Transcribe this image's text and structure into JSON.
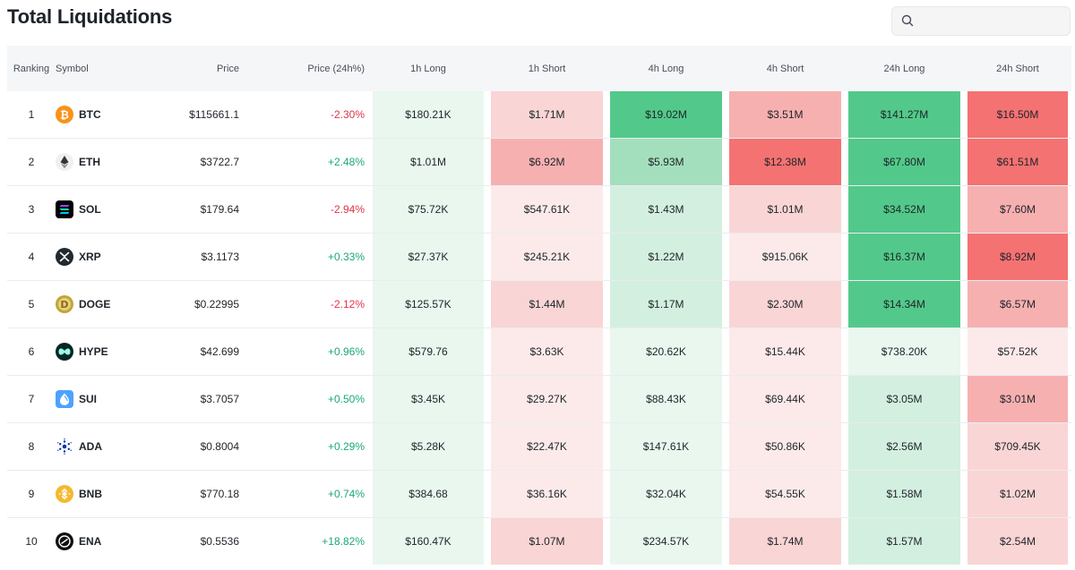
{
  "header": {
    "title": "Total Liquidations",
    "search_value": ""
  },
  "columns": {
    "ranking": "Ranking",
    "symbol": "Symbol",
    "price": "Price",
    "price_change": "Price (24h%)",
    "long_1h": "1h Long",
    "short_1h": "1h Short",
    "long_4h": "4h Long",
    "short_4h": "4h Short",
    "long_24h": "24h Long",
    "short_24h": "24h Short"
  },
  "colors": {
    "long_scale": [
      "#e9f7ef",
      "#d3efe0",
      "#a3dfbd",
      "#52c98a"
    ],
    "short_scale": [
      "#fceaea",
      "#f9d5d5",
      "#f7b0b0",
      "#f57272"
    ],
    "positive_change": "#1aa879",
    "negative_change": "#e0334a"
  },
  "rows": [
    {
      "rank": "1",
      "symbol": "BTC",
      "icon": "btc-icon",
      "price": "$115661.1",
      "change": "-2.30%",
      "change_dir": "neg",
      "l1h": "$180.21K",
      "s1h": "$1.71M",
      "l4h": "$19.02M",
      "s4h": "$3.51M",
      "l24h": "$141.27M",
      "s24h": "$16.50M",
      "shade": {
        "l1h": 0,
        "s1h": 1,
        "l4h": 3,
        "s4h": 2,
        "l24h": 3,
        "s24h": 3
      }
    },
    {
      "rank": "2",
      "symbol": "ETH",
      "icon": "eth-icon",
      "price": "$3722.7",
      "change": "+2.48%",
      "change_dir": "pos",
      "l1h": "$1.01M",
      "s1h": "$6.92M",
      "l4h": "$5.93M",
      "s4h": "$12.38M",
      "l24h": "$67.80M",
      "s24h": "$61.51M",
      "shade": {
        "l1h": 0,
        "s1h": 2,
        "l4h": 2,
        "s4h": 3,
        "l24h": 3,
        "s24h": 3
      }
    },
    {
      "rank": "3",
      "symbol": "SOL",
      "icon": "sol-icon",
      "price": "$179.64",
      "change": "-2.94%",
      "change_dir": "neg",
      "l1h": "$75.72K",
      "s1h": "$547.61K",
      "l4h": "$1.43M",
      "s4h": "$1.01M",
      "l24h": "$34.52M",
      "s24h": "$7.60M",
      "shade": {
        "l1h": 0,
        "s1h": 0,
        "l4h": 1,
        "s4h": 1,
        "l24h": 3,
        "s24h": 2
      }
    },
    {
      "rank": "4",
      "symbol": "XRP",
      "icon": "xrp-icon",
      "price": "$3.1173",
      "change": "+0.33%",
      "change_dir": "pos",
      "l1h": "$27.37K",
      "s1h": "$245.21K",
      "l4h": "$1.22M",
      "s4h": "$915.06K",
      "l24h": "$16.37M",
      "s24h": "$8.92M",
      "shade": {
        "l1h": 0,
        "s1h": 0,
        "l4h": 1,
        "s4h": 0,
        "l24h": 3,
        "s24h": 3
      }
    },
    {
      "rank": "5",
      "symbol": "DOGE",
      "icon": "doge-icon",
      "price": "$0.22995",
      "change": "-2.12%",
      "change_dir": "neg",
      "l1h": "$125.57K",
      "s1h": "$1.44M",
      "l4h": "$1.17M",
      "s4h": "$2.30M",
      "l24h": "$14.34M",
      "s24h": "$6.57M",
      "shade": {
        "l1h": 0,
        "s1h": 1,
        "l4h": 1,
        "s4h": 1,
        "l24h": 3,
        "s24h": 2
      }
    },
    {
      "rank": "6",
      "symbol": "HYPE",
      "icon": "hype-icon",
      "price": "$42.699",
      "change": "+0.96%",
      "change_dir": "pos",
      "l1h": "$579.76",
      "s1h": "$3.63K",
      "l4h": "$20.62K",
      "s4h": "$15.44K",
      "l24h": "$738.20K",
      "s24h": "$57.52K",
      "shade": {
        "l1h": 0,
        "s1h": 0,
        "l4h": 0,
        "s4h": 0,
        "l24h": 0,
        "s24h": 0
      }
    },
    {
      "rank": "7",
      "symbol": "SUI",
      "icon": "sui-icon",
      "price": "$3.7057",
      "change": "+0.50%",
      "change_dir": "pos",
      "l1h": "$3.45K",
      "s1h": "$29.27K",
      "l4h": "$88.43K",
      "s4h": "$69.44K",
      "l24h": "$3.05M",
      "s24h": "$3.01M",
      "shade": {
        "l1h": 0,
        "s1h": 0,
        "l4h": 0,
        "s4h": 0,
        "l24h": 1,
        "s24h": 2
      }
    },
    {
      "rank": "8",
      "symbol": "ADA",
      "icon": "ada-icon",
      "price": "$0.8004",
      "change": "+0.29%",
      "change_dir": "pos",
      "l1h": "$5.28K",
      "s1h": "$22.47K",
      "l4h": "$147.61K",
      "s4h": "$50.86K",
      "l24h": "$2.56M",
      "s24h": "$709.45K",
      "shade": {
        "l1h": 0,
        "s1h": 0,
        "l4h": 0,
        "s4h": 0,
        "l24h": 1,
        "s24h": 1
      }
    },
    {
      "rank": "9",
      "symbol": "BNB",
      "icon": "bnb-icon",
      "price": "$770.18",
      "change": "+0.74%",
      "change_dir": "pos",
      "l1h": "$384.68",
      "s1h": "$36.16K",
      "l4h": "$32.04K",
      "s4h": "$54.55K",
      "l24h": "$1.58M",
      "s24h": "$1.02M",
      "shade": {
        "l1h": 0,
        "s1h": 0,
        "l4h": 0,
        "s4h": 0,
        "l24h": 1,
        "s24h": 1
      }
    },
    {
      "rank": "10",
      "symbol": "ENA",
      "icon": "ena-icon",
      "price": "$0.5536",
      "change": "+18.82%",
      "change_dir": "pos",
      "l1h": "$160.47K",
      "s1h": "$1.07M",
      "l4h": "$234.57K",
      "s4h": "$1.74M",
      "l24h": "$1.57M",
      "s24h": "$2.54M",
      "shade": {
        "l1h": 0,
        "s1h": 1,
        "l4h": 0,
        "s4h": 1,
        "l24h": 1,
        "s24h": 1
      }
    }
  ]
}
